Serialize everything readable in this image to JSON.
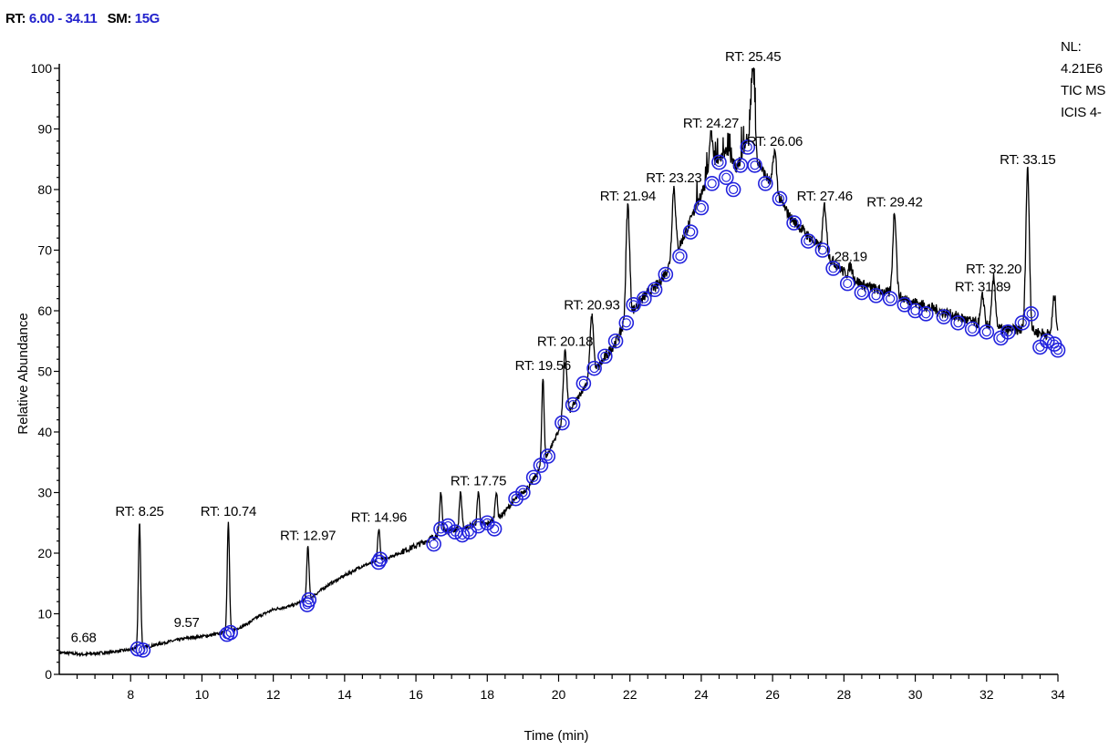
{
  "header": {
    "rt_key": "RT:",
    "rt_value": "6.00 - 34.11",
    "sm_key": "SM:",
    "sm_value": "15G"
  },
  "info": {
    "nl_label": "NL:",
    "nl_value": "4.21E6",
    "scan": "TIC MS",
    "detector": "ICIS 4-"
  },
  "colors": {
    "trace": "#000000",
    "marker": "#2222dd",
    "header_value": "#2222cc"
  },
  "chart_data": {
    "type": "line",
    "xlabel": "Time (min)",
    "ylabel": "Relative Abundance",
    "xlim": [
      6.0,
      34.0
    ],
    "ylim": [
      0,
      100
    ],
    "x_ticks": [
      8,
      10,
      12,
      14,
      16,
      18,
      20,
      22,
      24,
      26,
      28,
      30,
      32,
      34
    ],
    "y_ticks": [
      0,
      10,
      20,
      30,
      40,
      50,
      60,
      70,
      80,
      90,
      100
    ],
    "grid": false,
    "baseline": [
      [
        6.0,
        3.5
      ],
      [
        6.7,
        3.2
      ],
      [
        7.5,
        3.6
      ],
      [
        8.0,
        4.0
      ],
      [
        8.5,
        4.5
      ],
      [
        9.0,
        5.2
      ],
      [
        9.6,
        5.9
      ],
      [
        10.2,
        6.3
      ],
      [
        10.8,
        7.0
      ],
      [
        11.2,
        8.0
      ],
      [
        11.6,
        9.5
      ],
      [
        12.0,
        10.6
      ],
      [
        12.5,
        11.2
      ],
      [
        13.0,
        12.3
      ],
      [
        13.5,
        14.5
      ],
      [
        14.0,
        16.2
      ],
      [
        14.5,
        17.8
      ],
      [
        15.0,
        18.7
      ],
      [
        15.5,
        19.8
      ],
      [
        16.0,
        21.0
      ],
      [
        16.4,
        22.2
      ],
      [
        16.8,
        23.4
      ],
      [
        17.2,
        23.8
      ],
      [
        17.6,
        24.4
      ],
      [
        18.0,
        24.6
      ],
      [
        18.4,
        26.0
      ],
      [
        18.8,
        28.8
      ],
      [
        19.2,
        31.0
      ],
      [
        19.6,
        35.0
      ],
      [
        20.0,
        40.0
      ],
      [
        20.4,
        44.0
      ],
      [
        20.8,
        48.0
      ],
      [
        21.2,
        51.0
      ],
      [
        21.6,
        54.5
      ],
      [
        22.0,
        59.0
      ],
      [
        22.4,
        62.0
      ],
      [
        22.8,
        64.0
      ],
      [
        23.2,
        68.0
      ],
      [
        23.6,
        73.0
      ],
      [
        24.0,
        79.0
      ],
      [
        24.4,
        84.0
      ],
      [
        24.7,
        86.0
      ],
      [
        25.0,
        83.0
      ],
      [
        25.3,
        88.0
      ],
      [
        25.6,
        84.0
      ],
      [
        26.0,
        80.0
      ],
      [
        26.5,
        75.0
      ],
      [
        27.0,
        72.0
      ],
      [
        27.5,
        69.0
      ],
      [
        28.0,
        66.0
      ],
      [
        28.5,
        64.0
      ],
      [
        29.0,
        63.0
      ],
      [
        29.5,
        62.0
      ],
      [
        30.0,
        61.0
      ],
      [
        30.5,
        60.0
      ],
      [
        31.0,
        59.0
      ],
      [
        31.5,
        58.0
      ],
      [
        32.0,
        57.0
      ],
      [
        32.5,
        56.5
      ],
      [
        33.0,
        56.5
      ],
      [
        33.5,
        56.0
      ],
      [
        34.0,
        55.5
      ]
    ],
    "peaks": [
      {
        "x": 8.25,
        "y": 25,
        "label": "RT: 8.25"
      },
      {
        "x": 10.74,
        "y": 25,
        "label": "RT: 10.74"
      },
      {
        "x": 12.97,
        "y": 21,
        "label": "RT: 12.97"
      },
      {
        "x": 14.96,
        "y": 24,
        "label": "RT: 14.96"
      },
      {
        "x": 16.7,
        "y": 30,
        "label": ""
      },
      {
        "x": 17.25,
        "y": 30,
        "label": ""
      },
      {
        "x": 17.75,
        "y": 30,
        "label": "RT: 17.75"
      },
      {
        "x": 18.25,
        "y": 30,
        "label": ""
      },
      {
        "x": 19.56,
        "y": 49,
        "label": "RT: 19.56"
      },
      {
        "x": 20.18,
        "y": 53,
        "label": "RT: 20.18"
      },
      {
        "x": 20.93,
        "y": 59,
        "label": "RT: 20.93"
      },
      {
        "x": 21.94,
        "y": 77,
        "label": "RT: 21.94"
      },
      {
        "x": 23.23,
        "y": 80,
        "label": "RT: 23.23"
      },
      {
        "x": 24.27,
        "y": 89,
        "label": "RT: 24.27"
      },
      {
        "x": 25.45,
        "y": 100,
        "label": "RT: 25.45"
      },
      {
        "x": 26.06,
        "y": 86,
        "label": "RT: 26.06"
      },
      {
        "x": 27.46,
        "y": 77,
        "label": "RT: 27.46"
      },
      {
        "x": 28.19,
        "y": 67,
        "label": "28.19"
      },
      {
        "x": 29.42,
        "y": 76,
        "label": "RT: 29.42"
      },
      {
        "x": 31.89,
        "y": 62,
        "label": "RT: 31.89"
      },
      {
        "x": 32.2,
        "y": 65,
        "label": "RT: 32.20"
      },
      {
        "x": 33.15,
        "y": 83,
        "label": "RT: 33.15"
      },
      {
        "x": 33.9,
        "y": 62,
        "label": ""
      }
    ],
    "minor_labels": [
      {
        "x": 6.68,
        "y": 3.5,
        "label": "6.68"
      },
      {
        "x": 9.57,
        "y": 6.0,
        "label": "9.57"
      }
    ],
    "markers": [
      [
        8.2,
        4.2
      ],
      [
        8.35,
        4.0
      ],
      [
        10.7,
        6.6
      ],
      [
        10.8,
        6.9
      ],
      [
        12.95,
        11.5
      ],
      [
        13.0,
        12.3
      ],
      [
        14.95,
        18.5
      ],
      [
        15.0,
        19.0
      ],
      [
        16.5,
        21.5
      ],
      [
        16.7,
        24.0
      ],
      [
        16.9,
        24.5
      ],
      [
        17.1,
        23.5
      ],
      [
        17.3,
        23.0
      ],
      [
        17.5,
        23.5
      ],
      [
        17.75,
        24.5
      ],
      [
        18.0,
        25.0
      ],
      [
        18.2,
        24.0
      ],
      [
        18.8,
        29.0
      ],
      [
        19.0,
        30.0
      ],
      [
        19.3,
        32.5
      ],
      [
        19.5,
        34.5
      ],
      [
        19.7,
        36.0
      ],
      [
        20.1,
        41.5
      ],
      [
        20.4,
        44.5
      ],
      [
        20.7,
        48.0
      ],
      [
        21.0,
        50.5
      ],
      [
        21.3,
        52.5
      ],
      [
        21.6,
        55.0
      ],
      [
        21.9,
        58.0
      ],
      [
        22.1,
        61.0
      ],
      [
        22.4,
        62.0
      ],
      [
        22.7,
        63.5
      ],
      [
        23.0,
        66.0
      ],
      [
        23.4,
        69.0
      ],
      [
        23.7,
        73.0
      ],
      [
        24.0,
        77.0
      ],
      [
        24.3,
        81.0
      ],
      [
        24.5,
        84.5
      ],
      [
        24.7,
        82.0
      ],
      [
        24.9,
        80.0
      ],
      [
        25.1,
        84.0
      ],
      [
        25.3,
        87.0
      ],
      [
        25.5,
        84.0
      ],
      [
        25.8,
        81.0
      ],
      [
        26.2,
        78.5
      ],
      [
        26.6,
        74.5
      ],
      [
        27.0,
        71.5
      ],
      [
        27.4,
        70.0
      ],
      [
        27.7,
        67.0
      ],
      [
        28.1,
        64.5
      ],
      [
        28.5,
        63.0
      ],
      [
        28.9,
        62.5
      ],
      [
        29.3,
        62.0
      ],
      [
        29.7,
        61.0
      ],
      [
        30.0,
        60.0
      ],
      [
        30.3,
        59.5
      ],
      [
        30.8,
        59.0
      ],
      [
        31.2,
        58.0
      ],
      [
        31.6,
        57.0
      ],
      [
        32.0,
        56.5
      ],
      [
        32.4,
        55.5
      ],
      [
        32.6,
        56.5
      ],
      [
        33.0,
        58.0
      ],
      [
        33.25,
        59.5
      ],
      [
        33.5,
        54.0
      ],
      [
        33.7,
        55.0
      ],
      [
        33.9,
        54.5
      ],
      [
        34.0,
        53.5
      ]
    ]
  }
}
